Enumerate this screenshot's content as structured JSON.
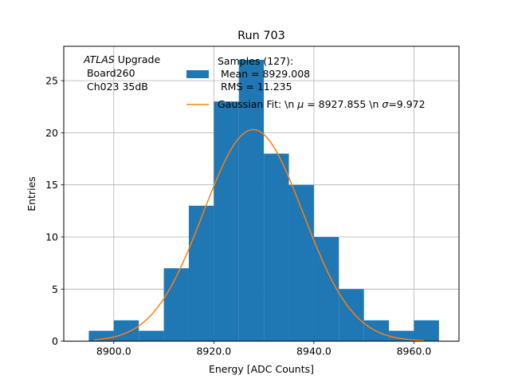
{
  "chart_data": {
    "type": "bar",
    "title": "Run 703",
    "xlabel": "Energy [ADC Counts]",
    "ylabel": "Entries",
    "xlim": [
      8890.0,
      8969.0
    ],
    "ylim": [
      0,
      28.3
    ],
    "grid": true,
    "xticks": [
      8900.0,
      8920.0,
      8940.0,
      8960.0
    ],
    "xtick_labels": [
      "8900.0",
      "8920.0",
      "8940.0",
      "8960.0"
    ],
    "yticks": [
      0,
      5,
      10,
      15,
      20,
      25
    ],
    "ytick_labels": [
      "0",
      "5",
      "10",
      "15",
      "20",
      "25"
    ],
    "histogram": {
      "bin_edges": [
        8895,
        8900,
        8905,
        8910,
        8915,
        8920,
        8925,
        8930,
        8935,
        8940,
        8945,
        8950,
        8955,
        8960,
        8965
      ],
      "counts": [
        1,
        2,
        1,
        7,
        13,
        23,
        27,
        18,
        15,
        10,
        5,
        2,
        1,
        2
      ],
      "color": "#1f77b4"
    },
    "fit": {
      "mu": 8927.855,
      "sigma": 9.972,
      "amplitude": 20.3,
      "x_range": [
        8896,
        8962
      ],
      "color": "#ff7f0e"
    },
    "annotation": {
      "line1_italic": "ATLAS",
      "line1_rest": " Upgrade",
      "line2": " Board260",
      "line3": " Ch023 35dB"
    },
    "legend": {
      "placement": "top-right",
      "hist_label": [
        "Samples (127):",
        " Mean = 8929.008",
        " RMS = 11.235"
      ],
      "fit_label_parts": {
        "prefix": "Gaussian Fit: \\n ",
        "mu_symbol": "μ",
        "mid": " = 8927.855 \\n ",
        "sigma_symbol": "σ",
        "suffix": "=9.972"
      }
    }
  }
}
